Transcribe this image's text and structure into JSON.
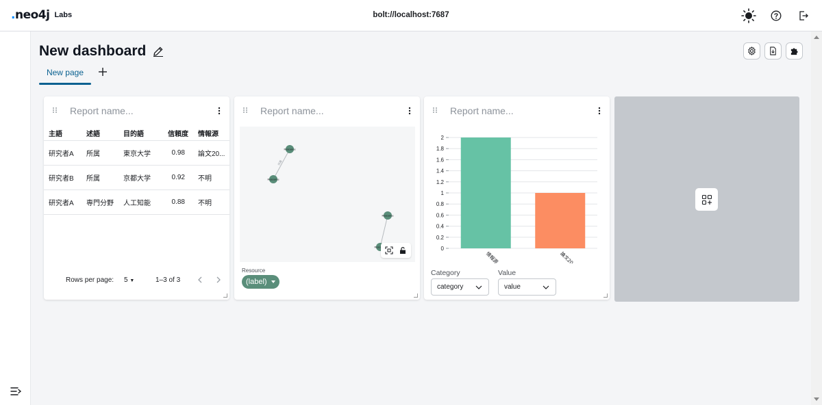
{
  "app": {
    "logo_text": "neo4j",
    "logo_suffix": "Labs",
    "connection": "bolt://localhost:7687"
  },
  "dashboard": {
    "title": "New dashboard",
    "tabs": [
      {
        "label": "New page"
      }
    ]
  },
  "reports": {
    "placeholder": "Report name..."
  },
  "table_report": {
    "columns": [
      "主語",
      "述語",
      "目的語",
      "信頼度",
      "情報源"
    ],
    "rows": [
      [
        "研究者A",
        "所属",
        "東京大学",
        "0.98",
        "論文20..."
      ],
      [
        "研究者B",
        "所属",
        "京都大学",
        "0.92",
        "不明"
      ],
      [
        "研究者A",
        "専門分野",
        "人工知能",
        "0.88",
        "不明"
      ]
    ],
    "rows_per_page_label": "Rows per page:",
    "rows_per_page_value": "5",
    "range_label": "1–3 of 3"
  },
  "graph_report": {
    "node_label": "Resource",
    "edge_label": "所属",
    "legend_label": "Resource",
    "chip_label": "(label)"
  },
  "bar_report": {
    "category_label": "Category",
    "category_value": "category",
    "value_label": "Value",
    "value_value": "value"
  },
  "chart_data": {
    "type": "bar",
    "categories": [
      "情報源",
      "論文20"
    ],
    "values": [
      2,
      1
    ],
    "colors": [
      "#66c2a5",
      "#fc8d62"
    ],
    "ylim": [
      0,
      2
    ],
    "yticks": [
      "0",
      "0.2",
      "0.4",
      "0.6",
      "0.8",
      "1",
      "1.2",
      "1.4",
      "1.6",
      "1.8",
      "2"
    ],
    "title": "",
    "xlabel": "",
    "ylabel": "",
    "grid": true
  },
  "colors": {
    "accent": "#0a6190",
    "node": "#5a8e7a",
    "placeholder_card": "#c4c8cd"
  }
}
